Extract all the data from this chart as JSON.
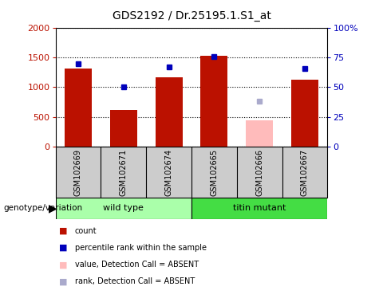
{
  "title": "GDS2192 / Dr.25195.1.S1_at",
  "samples": [
    "GSM102669",
    "GSM102671",
    "GSM102674",
    "GSM102665",
    "GSM102666",
    "GSM102667"
  ],
  "count_values": [
    1310,
    620,
    1160,
    1530,
    null,
    1130
  ],
  "count_absent_values": [
    null,
    null,
    null,
    null,
    450,
    null
  ],
  "percentile_values_left": [
    1390,
    1010,
    1340,
    1520,
    null,
    1310
  ],
  "percentile_absent_values_left": [
    null,
    null,
    null,
    null,
    760,
    null
  ],
  "left_ylim": [
    0,
    2000
  ],
  "right_ylim": [
    0,
    100
  ],
  "left_yticks": [
    0,
    500,
    1000,
    1500,
    2000
  ],
  "right_yticks": [
    0,
    25,
    50,
    75,
    100
  ],
  "right_yticklabels": [
    "0",
    "25",
    "50",
    "75",
    "100%"
  ],
  "bar_color": "#bb1100",
  "bar_absent_color": "#ffbbbb",
  "marker_color": "#0000bb",
  "marker_absent_color": "#aaaacc",
  "group_colors": {
    "wild type": "#aaffaa",
    "titin mutant": "#44dd44"
  },
  "group_label": "genotype/variation",
  "bg_color": "#cccccc",
  "legend_items": [
    {
      "label": "count",
      "color": "#bb1100"
    },
    {
      "label": "percentile rank within the sample",
      "color": "#0000bb"
    },
    {
      "label": "value, Detection Call = ABSENT",
      "color": "#ffbbbb"
    },
    {
      "label": "rank, Detection Call = ABSENT",
      "color": "#aaaacc"
    }
  ]
}
